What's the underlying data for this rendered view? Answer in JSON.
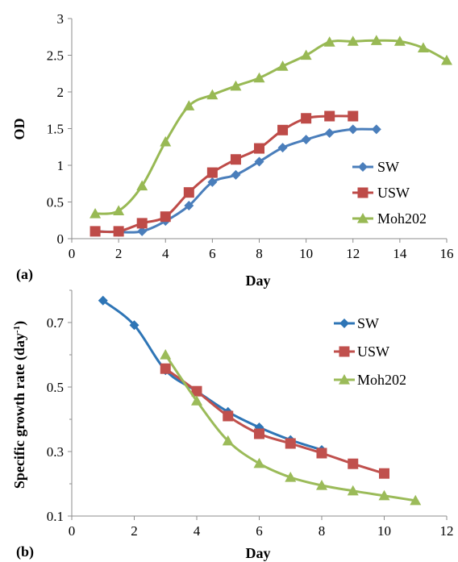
{
  "chart_data": [
    {
      "type": "line",
      "panel_label": "(a)",
      "xlabel": "Day",
      "ylabel": "OD",
      "xlim": [
        0,
        16
      ],
      "ylim": [
        0,
        3
      ],
      "xticks": [
        0,
        2,
        4,
        6,
        8,
        10,
        12,
        14,
        16
      ],
      "yticks": [
        0,
        0.5,
        1,
        1.5,
        2,
        2.5,
        3
      ],
      "grid": false,
      "legend_position": "right",
      "series": [
        {
          "name": "SW",
          "color": "#4a7ebb",
          "marker": "diamond",
          "x": [
            1,
            2,
            3,
            4,
            5,
            6,
            7,
            8,
            9,
            10,
            11,
            12,
            13
          ],
          "y": [
            0.1,
            0.09,
            0.1,
            0.24,
            0.45,
            0.77,
            0.87,
            1.05,
            1.24,
            1.35,
            1.44,
            1.49,
            1.49
          ]
        },
        {
          "name": "USW",
          "color": "#be4b48",
          "marker": "square",
          "x": [
            1,
            2,
            3,
            4,
            5,
            6,
            7,
            8,
            9,
            10,
            11,
            12
          ],
          "y": [
            0.1,
            0.1,
            0.21,
            0.3,
            0.63,
            0.9,
            1.08,
            1.23,
            1.48,
            1.64,
            1.67,
            1.67
          ]
        },
        {
          "name": "Moh202",
          "color": "#98b954",
          "marker": "triangle",
          "x": [
            1,
            2,
            3,
            4,
            5,
            6,
            7,
            8,
            9,
            10,
            11,
            12,
            13,
            14,
            15,
            16
          ],
          "y": [
            0.34,
            0.38,
            0.72,
            1.32,
            1.81,
            1.96,
            2.08,
            2.19,
            2.35,
            2.5,
            2.68,
            2.69,
            2.7,
            2.69,
            2.6,
            2.43
          ]
        }
      ]
    },
    {
      "type": "line",
      "panel_label": "(b)",
      "xlabel": "Day",
      "ylabel": "Specific growth rate (day",
      "ylabel_sup": "-1",
      "ylabel_end": ")",
      "xlim": [
        0,
        12
      ],
      "ylim": [
        0.1,
        0.8
      ],
      "xticks": [
        0,
        2,
        4,
        6,
        8,
        10,
        12
      ],
      "yticks": [
        0.1,
        0.3,
        0.5,
        0.7
      ],
      "grid": false,
      "legend_position": "top-right",
      "series": [
        {
          "name": "SW",
          "color": "#2e75b6",
          "marker": "diamond",
          "x": [
            1,
            2,
            3,
            4,
            5,
            6,
            7,
            8
          ],
          "y": [
            0.768,
            0.692,
            0.552,
            0.487,
            0.423,
            0.375,
            0.336,
            0.305
          ]
        },
        {
          "name": "USW",
          "color": "#c0504d",
          "marker": "square",
          "x": [
            3,
            4,
            5,
            6,
            7,
            8,
            9,
            10
          ],
          "y": [
            0.557,
            0.487,
            0.41,
            0.355,
            0.325,
            0.295,
            0.262,
            0.232
          ]
        },
        {
          "name": "Moh202",
          "color": "#9bbb59",
          "marker": "triangle",
          "x": [
            3,
            4,
            5,
            6,
            7,
            8,
            9,
            10,
            11
          ],
          "y": [
            0.6,
            0.457,
            0.333,
            0.263,
            0.22,
            0.195,
            0.178,
            0.163,
            0.148
          ]
        }
      ]
    }
  ]
}
